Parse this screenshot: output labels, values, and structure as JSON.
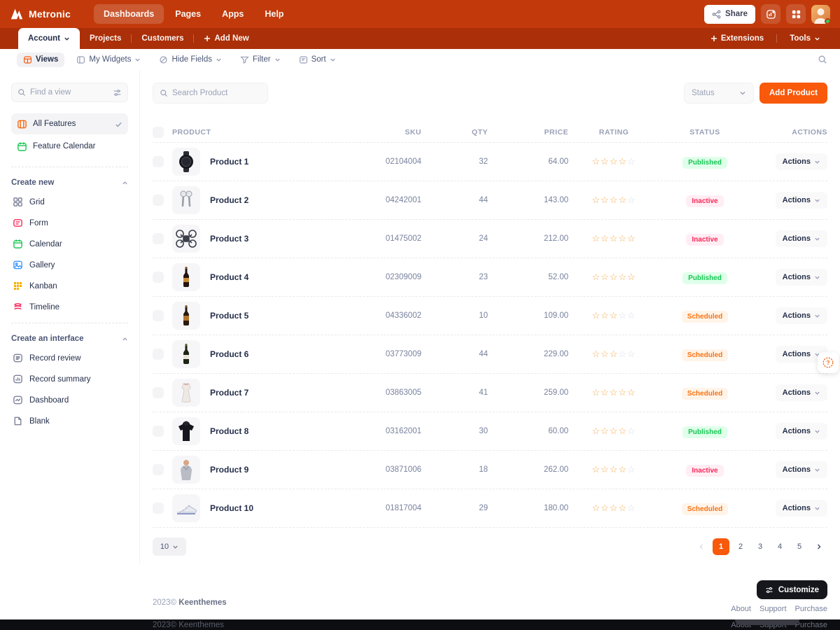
{
  "colors": {
    "topbar": "#C23A0B",
    "subnav": "#AB2F08",
    "accent_orange": "#F8590B",
    "published_green": "#17C653",
    "inactive_red": "#F8285A",
    "scheduled_orange": "#F97316"
  },
  "header": {
    "brand": "Metronic",
    "nav": [
      {
        "label": "Dashboards",
        "active": true
      },
      {
        "label": "Pages",
        "active": false
      },
      {
        "label": "Apps",
        "active": false
      },
      {
        "label": "Help",
        "active": false
      }
    ],
    "share_label": "Share"
  },
  "subnav": {
    "tabs": [
      {
        "label": "Account",
        "active": true
      },
      {
        "label": "Projects",
        "active": false
      },
      {
        "label": "Customers",
        "active": false
      }
    ],
    "add_new_label": "Add New",
    "extensions_label": "Extensions",
    "tools_label": "Tools"
  },
  "toolbar": {
    "views": "Views",
    "my_widgets": "My Widgets",
    "hide_fields": "Hide Fields",
    "filter": "Filter",
    "sort": "Sort"
  },
  "sidebar": {
    "search_placeholder": "Find a view",
    "views": [
      {
        "label": "All Features",
        "selected": true
      },
      {
        "label": "Feature Calendar",
        "selected": false
      }
    ],
    "sections": [
      {
        "title": "Create new",
        "items": [
          {
            "label": "Grid"
          },
          {
            "label": "Form"
          },
          {
            "label": "Calendar"
          },
          {
            "label": "Gallery"
          },
          {
            "label": "Kanban"
          },
          {
            "label": "Timeline"
          }
        ]
      },
      {
        "title": "Create an interface",
        "items": [
          {
            "label": "Record review"
          },
          {
            "label": "Record summary"
          },
          {
            "label": "Dashboard"
          },
          {
            "label": "Blank"
          }
        ]
      }
    ]
  },
  "content": {
    "search_placeholder": "Search Product",
    "status_filter_label": "Status",
    "add_button": "Add Product",
    "table": {
      "columns": [
        "PRODUCT",
        "SKU",
        "QTY",
        "PRICE",
        "RATING",
        "STATUS",
        "ACTIONS"
      ],
      "actions_label": "Actions",
      "rows": [
        {
          "name": "Product 1",
          "sku": "02104004",
          "qty": "32",
          "price": "64.00",
          "rating": 4,
          "status": "Published",
          "image": "smartwatch"
        },
        {
          "name": "Product 2",
          "sku": "04242001",
          "qty": "44",
          "price": "143.00",
          "rating": 4,
          "status": "Inactive",
          "image": "earbuds"
        },
        {
          "name": "Product 3",
          "sku": "01475002",
          "qty": "24",
          "price": "212.00",
          "rating": 5,
          "status": "Inactive",
          "image": "drone"
        },
        {
          "name": "Product 4",
          "sku": "02309009",
          "qty": "23",
          "price": "52.00",
          "rating": 5,
          "status": "Published",
          "image": "wine-bottle"
        },
        {
          "name": "Product 5",
          "sku": "04336002",
          "qty": "10",
          "price": "109.00",
          "rating": 3,
          "status": "Scheduled",
          "image": "wine-bottle"
        },
        {
          "name": "Product 6",
          "sku": "03773009",
          "qty": "44",
          "price": "229.00",
          "rating": 3,
          "status": "Scheduled",
          "image": "wine-bottle"
        },
        {
          "name": "Product 7",
          "sku": "03863005",
          "qty": "41",
          "price": "259.00",
          "rating": 5,
          "status": "Scheduled",
          "image": "dress"
        },
        {
          "name": "Product 8",
          "sku": "03162001",
          "qty": "30",
          "price": "60.00",
          "rating": 4,
          "status": "Published",
          "image": "jacket"
        },
        {
          "name": "Product 9",
          "sku": "03871006",
          "qty": "18",
          "price": "262.00",
          "rating": 4,
          "status": "Inactive",
          "image": "hoodie"
        },
        {
          "name": "Product 10",
          "sku": "01817004",
          "qty": "29",
          "price": "180.00",
          "rating": 4,
          "status": "Scheduled",
          "image": "sneakers"
        }
      ]
    },
    "pagination": {
      "page_size": "10",
      "pages": [
        "1",
        "2",
        "3",
        "4",
        "5"
      ],
      "active_page": "1"
    }
  },
  "footer": {
    "year": "2023©",
    "company": "Keenthemes",
    "customize_label": "Customize",
    "links": [
      "About",
      "Support",
      "Purchase"
    ]
  }
}
